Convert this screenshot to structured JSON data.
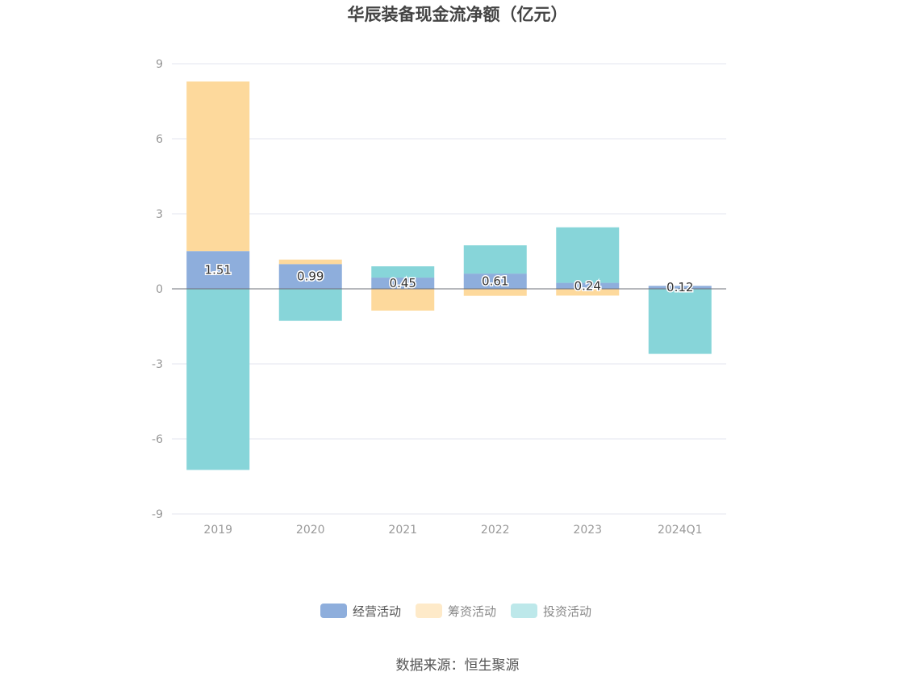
{
  "chart_data": {
    "type": "bar",
    "stacked": true,
    "title": "华辰装备现金流净额（亿元）",
    "categories": [
      "2019",
      "2020",
      "2021",
      "2022",
      "2023",
      "2024Q1"
    ],
    "series": [
      {
        "name": "经营活动",
        "color": "#8eaedc",
        "values": [
          1.51,
          0.99,
          0.45,
          0.61,
          0.24,
          0.12
        ]
      },
      {
        "name": "筹资活动",
        "color": "#fdd99c",
        "values": [
          6.78,
          0.18,
          -0.87,
          -0.28,
          -0.27,
          0
        ]
      },
      {
        "name": "投资活动",
        "color": "#87d5d9",
        "values": [
          -7.24,
          -1.28,
          0.45,
          1.13,
          2.22,
          -2.6
        ]
      }
    ],
    "data_labels": [
      "1.51",
      "0.99",
      "0.45",
      "0.61",
      "0.24",
      "0.12"
    ],
    "ylim": [
      -9,
      9
    ],
    "yticks": [
      9,
      6,
      3,
      0,
      -3,
      -6,
      -9
    ],
    "xlabel": "",
    "ylabel": "",
    "grid": true,
    "legend_position": "bottom",
    "legend_inactive_color": "#888888",
    "legend_active_color": "#555555"
  },
  "source": "数据来源：恒生聚源"
}
